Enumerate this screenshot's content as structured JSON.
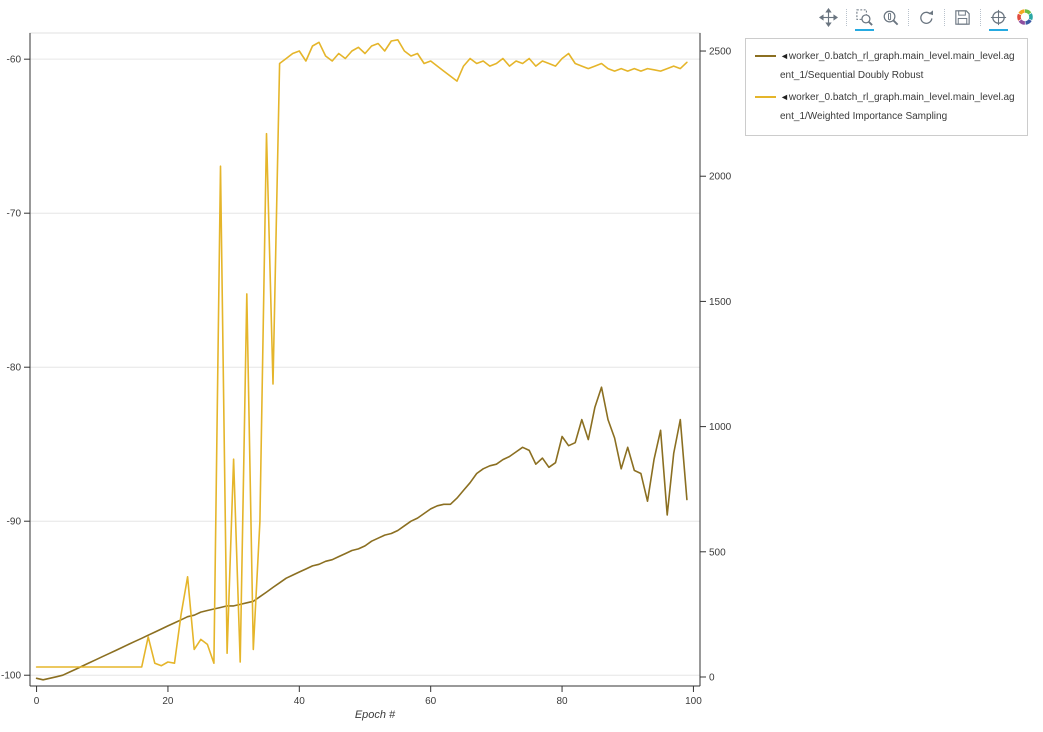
{
  "toolbar": {
    "accent_color": "#26aae1",
    "tools": [
      {
        "name": "pan",
        "active": false
      },
      {
        "name": "box-zoom",
        "active": true
      },
      {
        "name": "wheel-zoom",
        "active": false
      },
      {
        "name": "reset",
        "active": false
      },
      {
        "name": "save",
        "active": false
      },
      {
        "name": "crosshair",
        "active": true
      }
    ],
    "logo_colors": [
      "#6dbe45",
      "#2aa7a5",
      "#3b5ba5",
      "#8f4f9f",
      "#e04b3f",
      "#f5a623"
    ]
  },
  "legend": {
    "items": [
      {
        "marker": "◄",
        "label": "worker_0.batch_rl_graph.main_level.main_level.agent_1/Sequential Doubly Robust",
        "color": "#8b6f21"
      },
      {
        "marker": "◄",
        "label": "worker_0.batch_rl_graph.main_level.main_level.agent_1/Weighted Importance Sampling",
        "color": "#e5b52a"
      }
    ]
  },
  "chart_data": {
    "type": "line",
    "title": "",
    "xlabel": "Epoch #",
    "xlim": [
      -1,
      101
    ],
    "xticks": [
      0,
      20,
      40,
      60,
      80,
      100
    ],
    "left_ylim": [
      -100.7,
      -58.3
    ],
    "left_yticks": [
      -100,
      -90,
      -80,
      -70,
      -60
    ],
    "right_ylim": [
      -36,
      2572
    ],
    "right_yticks": [
      0,
      500,
      1000,
      1500,
      2000,
      2500
    ],
    "grid": "horizontal-left-axis",
    "legend_position": "right-outside-top",
    "series": [
      {
        "name": "worker_0.batch_rl_graph.main_level.main_level.agent_1/Sequential Doubly Robust",
        "axis": "left",
        "color": "#8b6f21",
        "x_start": 0,
        "x_step": 1,
        "values": [
          -100.2,
          -100.3,
          -100.2,
          -100.1,
          -100.0,
          -99.8,
          -99.6,
          -99.4,
          -99.2,
          -99.0,
          -98.8,
          -98.6,
          -98.4,
          -98.2,
          -98.0,
          -97.8,
          -97.6,
          -97.4,
          -97.2,
          -97.0,
          -96.8,
          -96.6,
          -96.4,
          -96.2,
          -96.1,
          -95.9,
          -95.8,
          -95.7,
          -95.6,
          -95.5,
          -95.5,
          -95.4,
          -95.3,
          -95.2,
          -94.9,
          -94.6,
          -94.3,
          -94.0,
          -93.7,
          -93.5,
          -93.3,
          -93.1,
          -92.9,
          -92.8,
          -92.6,
          -92.5,
          -92.3,
          -92.1,
          -91.9,
          -91.8,
          -91.6,
          -91.3,
          -91.1,
          -90.9,
          -90.8,
          -90.6,
          -90.3,
          -90.0,
          -89.8,
          -89.5,
          -89.2,
          -89.0,
          -88.9,
          -88.9,
          -88.5,
          -88.0,
          -87.5,
          -86.9,
          -86.6,
          -86.4,
          -86.3,
          -86.0,
          -85.8,
          -85.5,
          -85.2,
          -85.4,
          -86.3,
          -85.9,
          -86.5,
          -86.2,
          -84.5,
          -85.1,
          -84.9,
          -83.4,
          -84.7,
          -82.6,
          -81.3,
          -83.4,
          -84.6,
          -86.6,
          -85.2,
          -86.7,
          -86.9,
          -88.7,
          -86.0,
          -84.1,
          -89.6,
          -85.6,
          -83.4,
          -88.6
        ]
      },
      {
        "name": "worker_0.batch_rl_graph.main_level.main_level.agent_1/Weighted Importance Sampling",
        "axis": "right",
        "color": "#e5b52a",
        "x_start": 0,
        "x_step": 1,
        "values": [
          40,
          40,
          40,
          40,
          40,
          40,
          40,
          40,
          40,
          40,
          40,
          40,
          40,
          40,
          40,
          40,
          40,
          160,
          55,
          45,
          60,
          55,
          250,
          400,
          110,
          150,
          130,
          55,
          2040,
          95,
          870,
          60,
          1530,
          110,
          620,
          2170,
          1170,
          2450,
          2470,
          2490,
          2500,
          2460,
          2520,
          2535,
          2480,
          2460,
          2490,
          2470,
          2500,
          2515,
          2490,
          2520,
          2530,
          2500,
          2540,
          2545,
          2500,
          2480,
          2490,
          2450,
          2460,
          2440,
          2420,
          2400,
          2380,
          2440,
          2470,
          2450,
          2460,
          2440,
          2450,
          2470,
          2440,
          2460,
          2450,
          2470,
          2440,
          2460,
          2450,
          2440,
          2470,
          2490,
          2450,
          2440,
          2430,
          2440,
          2450,
          2430,
          2420,
          2430,
          2420,
          2430,
          2420,
          2430,
          2425,
          2420,
          2430,
          2440,
          2430,
          2455
        ]
      }
    ]
  }
}
